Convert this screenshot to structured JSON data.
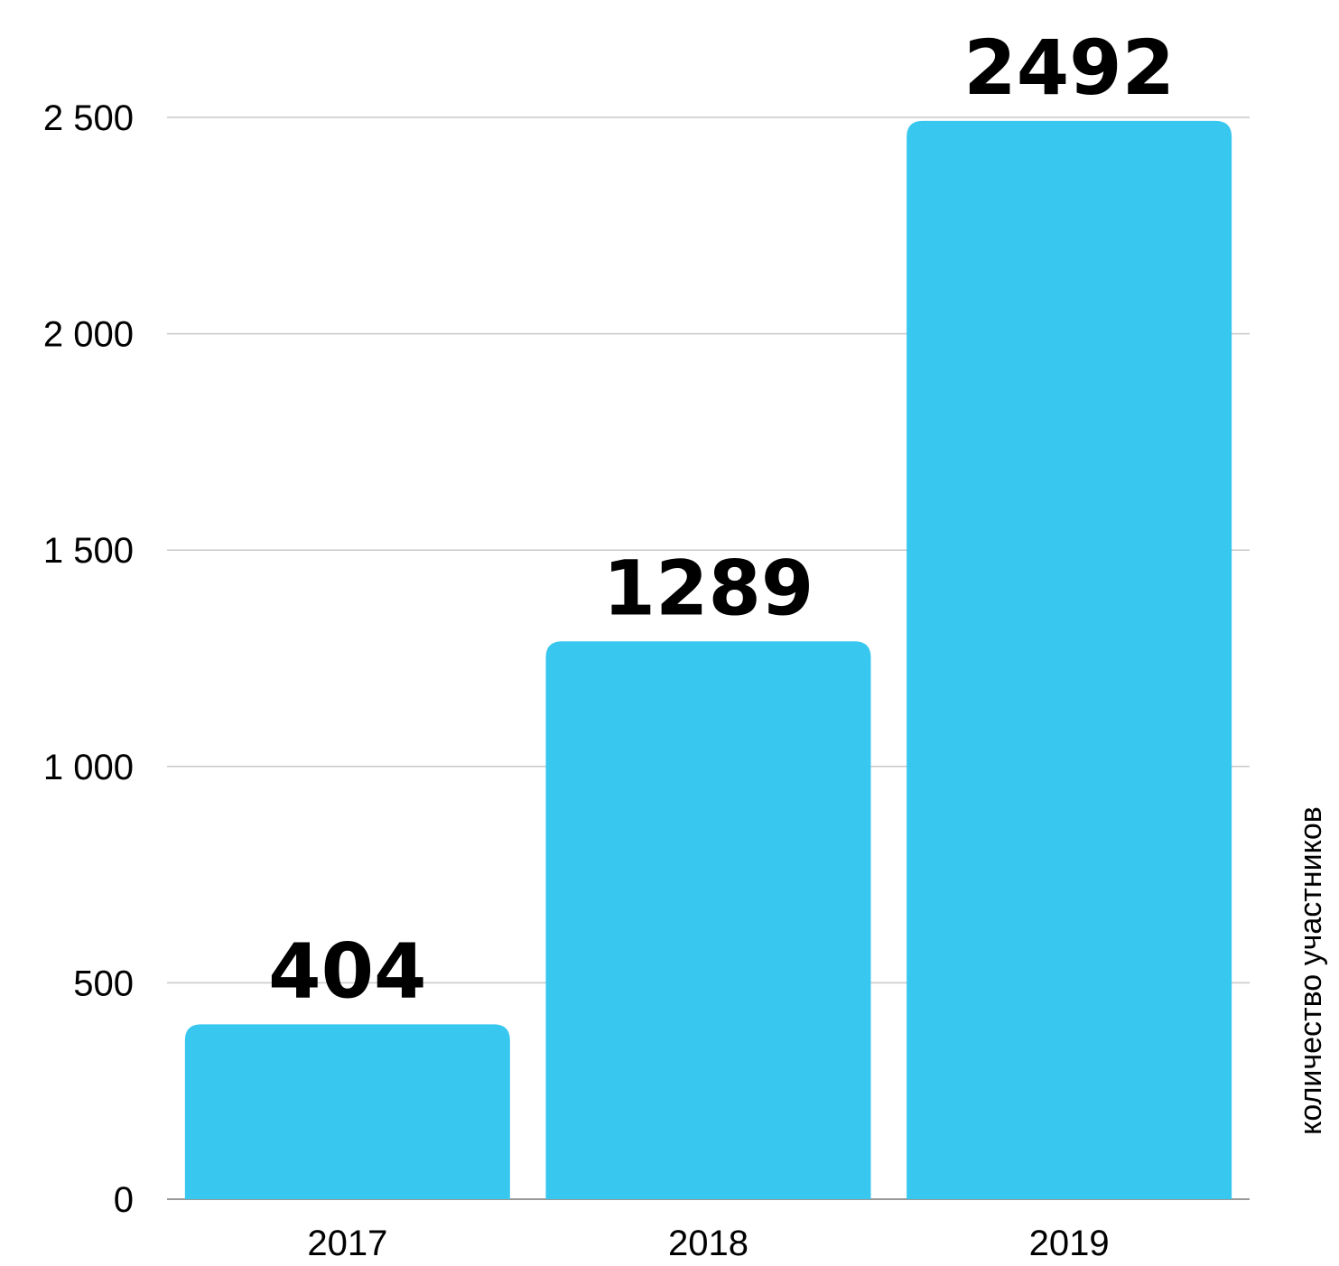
{
  "chart_data": {
    "type": "bar",
    "categories": [
      "2017",
      "2018",
      "2019"
    ],
    "values": [
      404,
      1289,
      2492
    ],
    "data_labels": [
      "404",
      "1289",
      "2492"
    ],
    "ylabel": "количество участников",
    "ylim": [
      0,
      2500
    ],
    "yticks": [
      0,
      500,
      1000,
      1500,
      2000,
      2500
    ],
    "ytick_labels": [
      "0",
      "500",
      "1 000",
      "1 500",
      "2 000",
      "2 500"
    ],
    "grid": true,
    "legend": "none",
    "colors": {
      "bar": "#38C7EE",
      "grid": "#c8c8c8",
      "baseline": "#999999"
    }
  }
}
